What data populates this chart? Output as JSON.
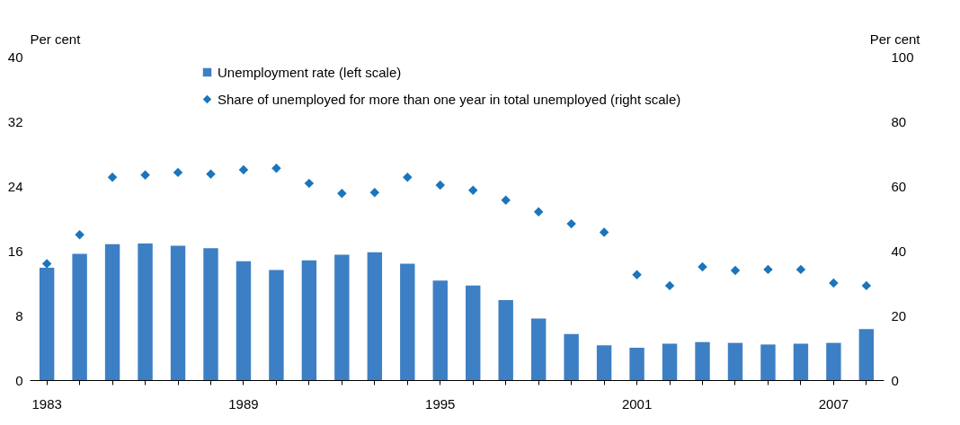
{
  "chart_data": {
    "type": "bar",
    "categories": [
      "1983",
      null,
      null,
      null,
      null,
      null,
      "1989",
      null,
      null,
      null,
      null,
      null,
      "1995",
      null,
      null,
      null,
      null,
      null,
      "2001",
      null,
      null,
      null,
      null,
      null,
      "2007",
      null
    ],
    "ylabel": "Per cent",
    "y2label": "Per cent",
    "ylim": [
      0,
      40
    ],
    "yticks": [
      0,
      8,
      16,
      24,
      32,
      40
    ],
    "y2lim": [
      0,
      100
    ],
    "y2ticks": [
      0,
      20,
      40,
      60,
      80,
      100
    ],
    "legend": "top",
    "grid": false,
    "series": [
      {
        "name": "Unemployment rate (left scale)",
        "color": "#3d7fc4",
        "values": [
          13.9,
          15.6,
          16.8,
          16.9,
          16.6,
          16.3,
          14.7,
          13.6,
          14.8,
          15.5,
          15.8,
          14.4,
          12.3,
          11.7,
          9.9,
          7.6,
          5.7,
          4.3,
          4.0,
          4.5,
          4.7,
          4.6,
          4.4,
          4.5,
          4.6,
          6.3
        ]
      },
      {
        "name": "Share of unemployed for more than one year in total unemployed (right scale)",
        "type": "scatter",
        "axis": "y2",
        "marker": "diamond",
        "color": "#1a75bc",
        "values": [
          36,
          44.9,
          62.7,
          63.4,
          64.2,
          63.7,
          65,
          65.5,
          60.8,
          57.7,
          58,
          62.7,
          60.3,
          58.7,
          55.6,
          52,
          48.3,
          45.7,
          32.6,
          29.2,
          35,
          33.9,
          34.2,
          34.2,
          30,
          29.2
        ]
      }
    ]
  }
}
